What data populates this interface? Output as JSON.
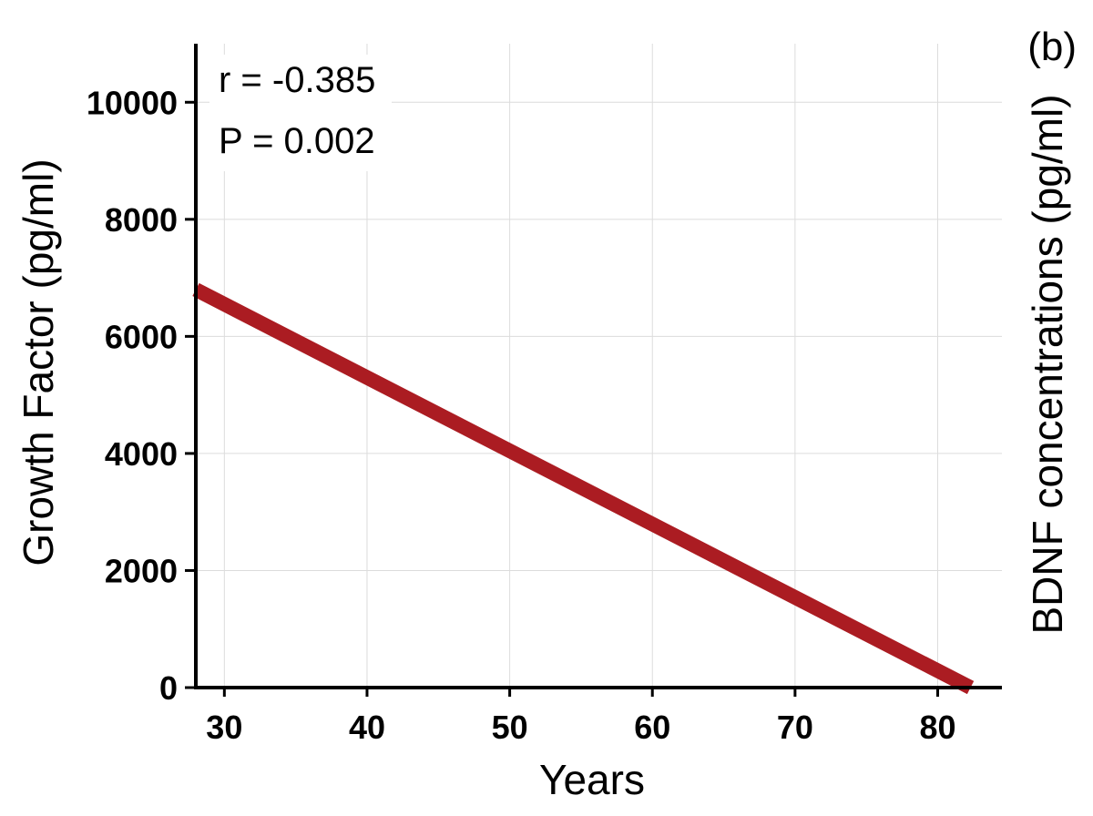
{
  "chart_data": {
    "type": "line",
    "panel_label": "(b)",
    "xlabel": "Years",
    "ylabel": "Growth Factor (pg/ml)",
    "ylabel_right": "BDNF concentrations (pg/ml)",
    "xlim": [
      28,
      84.5
    ],
    "ylim": [
      0,
      11000
    ],
    "xticks": [
      30,
      40,
      50,
      60,
      70,
      80
    ],
    "yticks": [
      0,
      2000,
      4000,
      6000,
      8000,
      10000
    ],
    "grid": true,
    "annotations": [
      "r = -0.385",
      "P = 0.002"
    ],
    "series": [
      {
        "color": "#ab1c22",
        "x": [
          28,
          82.3
        ],
        "y": [
          6800,
          0
        ]
      }
    ]
  }
}
